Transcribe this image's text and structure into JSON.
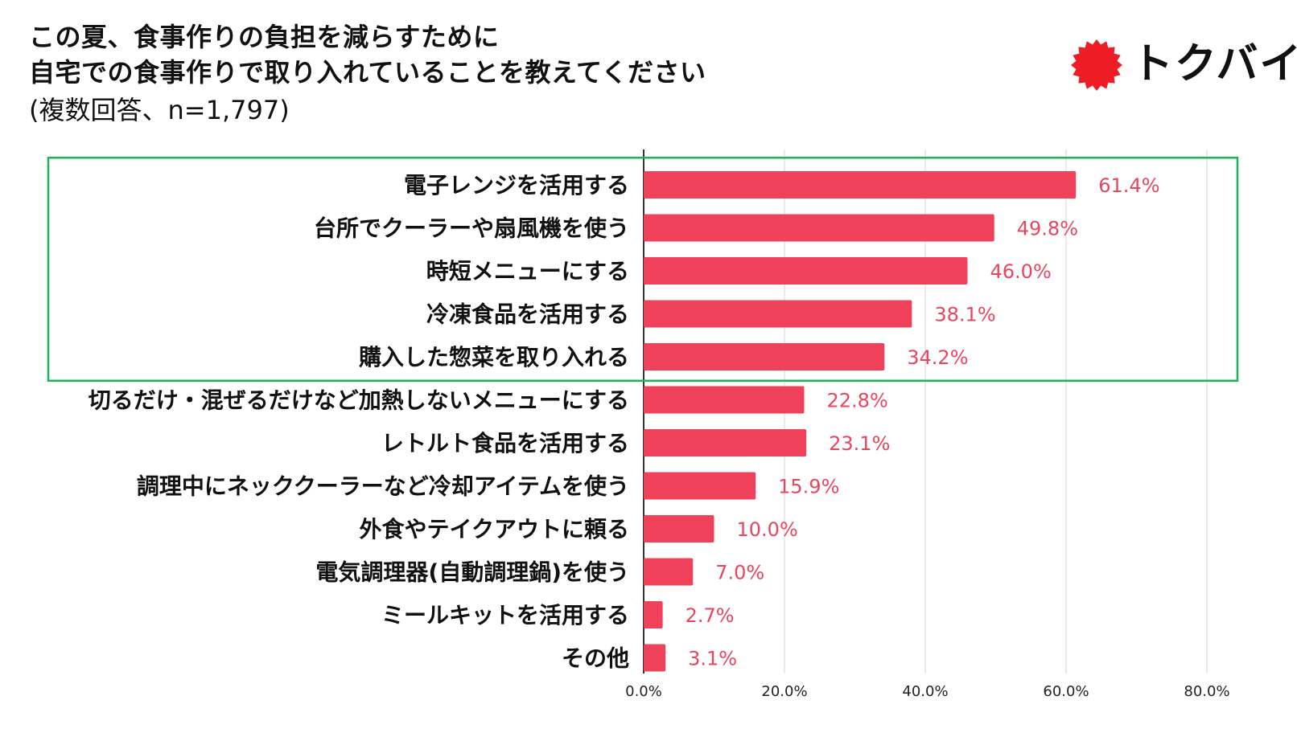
{
  "header": {
    "title_line1": "この夏、食事作りの負担を減らすために",
    "title_line2": "自宅での食事作りで取り入れていることを教えてください",
    "subtitle": "(複数回答、n=1,797)"
  },
  "logo": {
    "text": "トクバイ",
    "icon": "red-sun-icon",
    "color": "#ee1c25"
  },
  "colors": {
    "bar": "#f0415b",
    "value_label": "#e8455e",
    "highlight_box": "#1db35a",
    "grid": "#d6d6d6"
  },
  "chart_data": {
    "type": "bar",
    "orientation": "horizontal",
    "categories": [
      "電子レンジを活用する",
      "台所でクーラーや扇風機を使う",
      "時短メニューにする",
      "冷凍食品を活用する",
      "購入した惣菜を取り入れる",
      "切るだけ・混ぜるだけなど加熱しないメニューにする",
      "レトルト食品を活用する",
      "調理中にネッククーラーなど冷却アイテムを使う",
      "外食やテイクアウトに頼る",
      "電気調理器(自動調理鍋)を使う",
      "ミールキットを活用する",
      "その他"
    ],
    "values": [
      61.4,
      49.8,
      46.0,
      38.1,
      34.2,
      22.8,
      23.1,
      15.9,
      10.0,
      7.0,
      2.7,
      3.1
    ],
    "value_labels": [
      "61.4%",
      "49.8%",
      "46.0%",
      "38.1%",
      "34.2%",
      "22.8%",
      "23.1%",
      "15.9%",
      "10.0%",
      "7.0%",
      "2.7%",
      "3.1%"
    ],
    "xlim": [
      0,
      80
    ],
    "xticks": [
      0,
      20,
      40,
      60,
      80
    ],
    "xtick_labels": [
      "0.0%",
      "20.0%",
      "40.0%",
      "60.0%",
      "80.0%"
    ],
    "highlighted_count": 5,
    "grid": true
  }
}
